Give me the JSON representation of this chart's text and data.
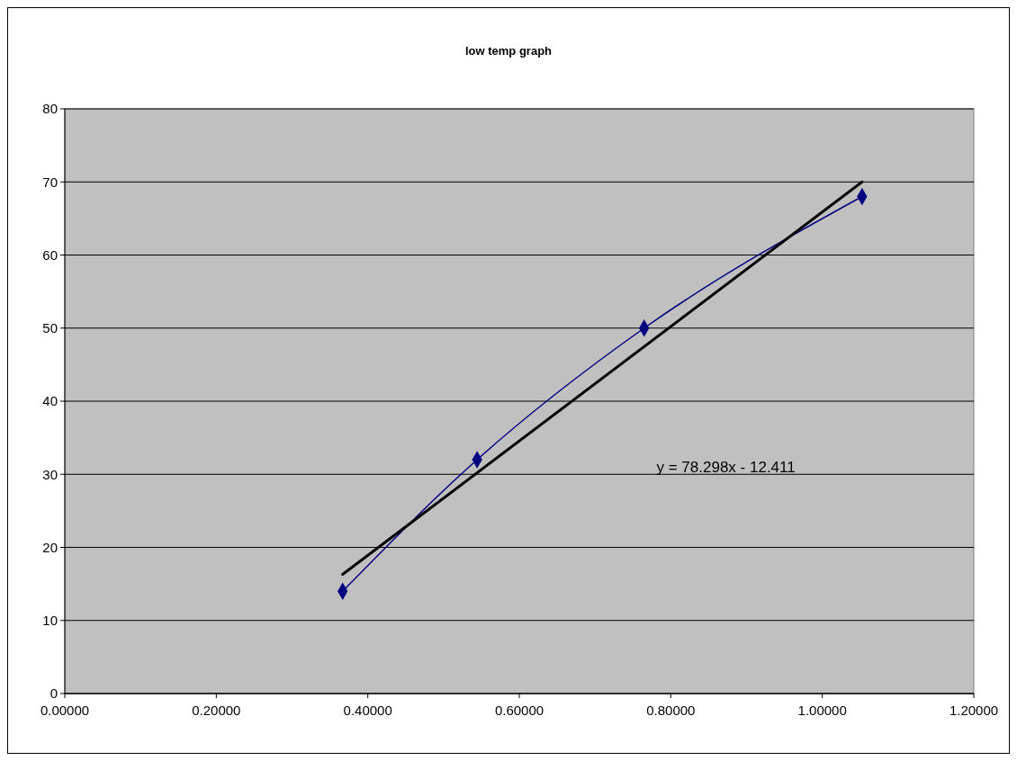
{
  "chart_data": {
    "type": "line",
    "title": "low temp graph",
    "series": [
      {
        "color": "#000080",
        "x": [
          0.3668,
          0.5443,
          0.7648,
          1.0525
        ],
        "values": [
          14,
          32,
          50,
          68
        ],
        "marker": "diamond"
      },
      {
        "type": "line",
        "color": "#000000",
        "x": [
          0.3668,
          1.0525
        ],
        "values": [
          16.3,
          70.0
        ],
        "marker": "none"
      }
    ],
    "annotations": [
      "y = 78.298x - 12.411"
    ],
    "xlim": [
      0,
      1.2
    ],
    "xticks": [
      {
        "value": 0,
        "label": "0.00000"
      },
      {
        "value": 0.2,
        "label": "0.20000"
      },
      {
        "value": 0.4,
        "label": "0.40000"
      },
      {
        "value": 0.6,
        "label": "0.60000"
      },
      {
        "value": 0.8,
        "label": "0.80000"
      },
      {
        "value": 1.0,
        "label": "1.00000"
      },
      {
        "value": 1.2,
        "label": "1.20000"
      }
    ],
    "ylim": [
      0,
      80
    ],
    "yticks": [
      0,
      10,
      20,
      30,
      40,
      50,
      60,
      70,
      80
    ],
    "grid": "y"
  }
}
